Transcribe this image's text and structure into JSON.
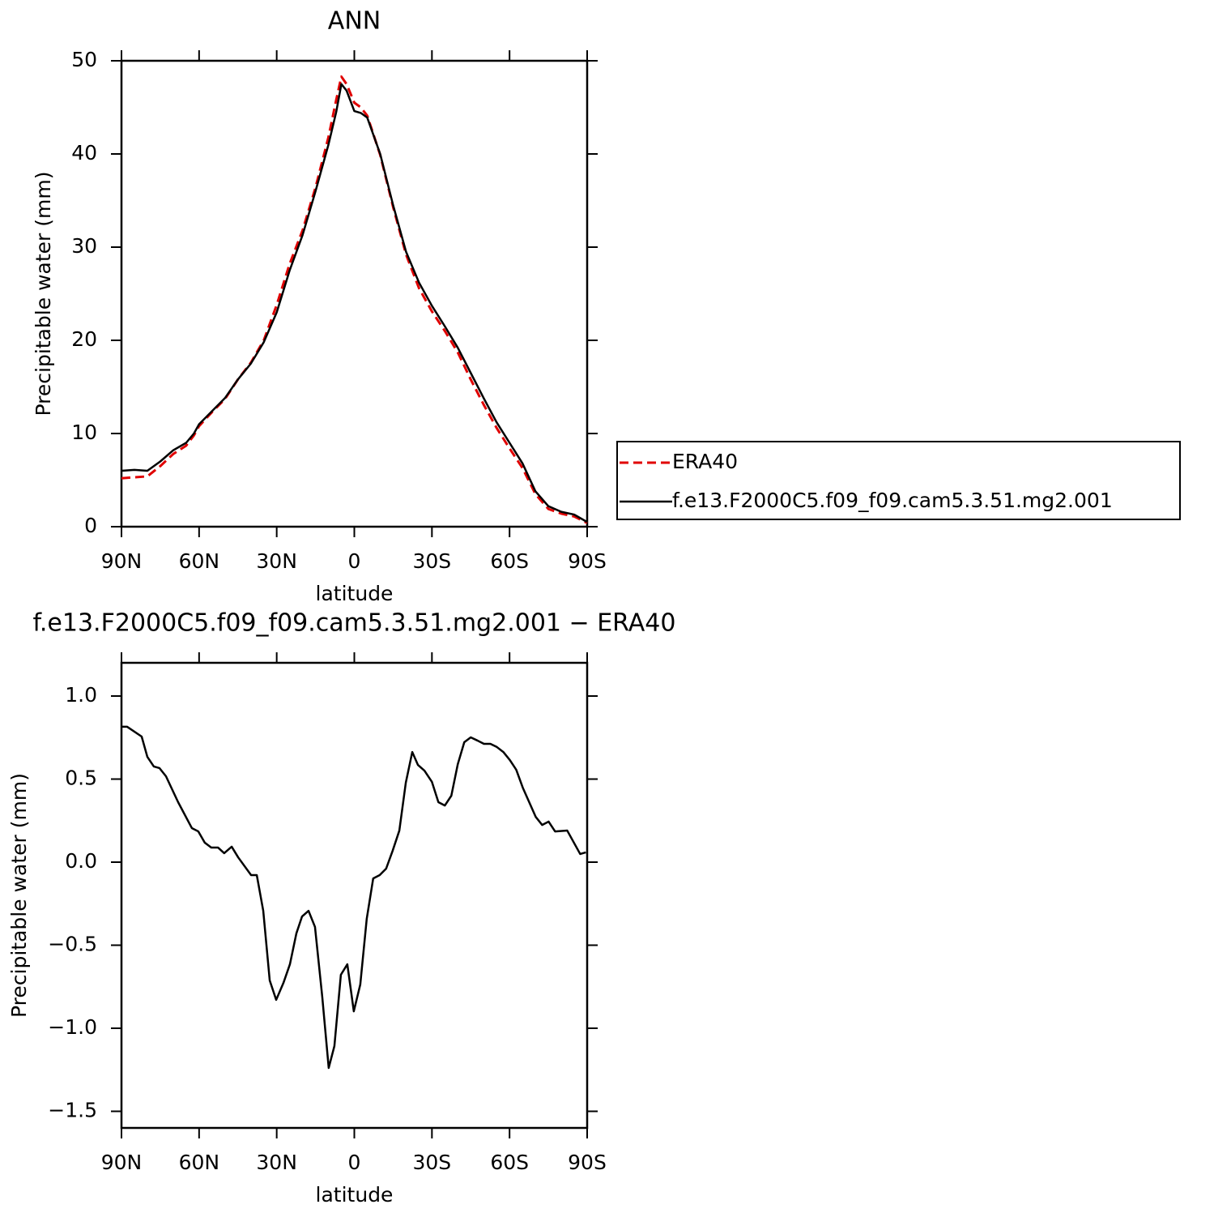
{
  "chart_data": [
    {
      "type": "line",
      "title": "ANN",
      "x_label": "latitude",
      "y_label": "Precipitable water (mm)",
      "x": [
        90,
        85,
        80,
        75,
        70,
        65,
        62,
        60,
        55,
        50,
        45,
        40,
        35,
        30,
        25,
        20,
        15,
        10,
        7,
        5,
        3,
        0,
        -2.5,
        -5,
        -10,
        -15,
        -20,
        -25,
        -30,
        -35,
        -40,
        -45,
        -50,
        -55,
        -60,
        -65,
        -70,
        -75,
        -80,
        -85,
        -90
      ],
      "series": [
        {
          "name": "ERA40",
          "color": "#e00000",
          "line_style": "dashed",
          "values": [
            5.2,
            5.3,
            5.4,
            6.5,
            7.8,
            8.7,
            9.8,
            10.8,
            12.3,
            13.7,
            15.8,
            17.6,
            20.0,
            23.8,
            28.2,
            31.8,
            36.4,
            41.8,
            45.8,
            48.3,
            47.5,
            45.5,
            45.0,
            44.1,
            39.9,
            34.3,
            29.2,
            25.6,
            23.1,
            21.0,
            18.7,
            15.8,
            13.1,
            10.6,
            8.4,
            6.3,
            3.5,
            1.9,
            1.4,
            1.1,
            0.4
          ]
        },
        {
          "name": "f.e13.F2000C5.f09_f09.cam5.3.51.mg2.001",
          "color": "#000000",
          "line_style": "solid",
          "values": [
            6.0,
            6.1,
            6.0,
            7.0,
            8.2,
            9.0,
            10.0,
            11.0,
            12.4,
            13.8,
            15.8,
            17.5,
            19.8,
            23.0,
            27.5,
            31.3,
            36.0,
            41.0,
            44.5,
            47.5,
            46.8,
            44.6,
            44.4,
            43.9,
            40.0,
            34.5,
            29.5,
            26.2,
            23.7,
            21.5,
            19.2,
            16.5,
            13.8,
            11.2,
            9.0,
            6.8,
            3.8,
            2.2,
            1.6,
            1.3,
            0.5
          ]
        }
      ],
      "xlim": [
        90,
        -90
      ],
      "xticks": [
        {
          "value": 90,
          "label": "90N"
        },
        {
          "value": 60,
          "label": "60N"
        },
        {
          "value": 30,
          "label": "30N"
        },
        0,
        {
          "value": -30,
          "label": "30S"
        },
        {
          "value": -60,
          "label": "60S"
        },
        {
          "value": -90,
          "label": "90S"
        }
      ],
      "ylim": [
        0,
        50
      ],
      "yticks": [
        0,
        10,
        20,
        30,
        40,
        50
      ],
      "legend": "right"
    },
    {
      "type": "line",
      "title": "f.e13.F2000C5.f09_f09.cam5.3.51.mg2.001 − ERA40",
      "x_label": "latitude",
      "y_label": "Precipitable water (mm)",
      "x": [
        90,
        87.8,
        82.2,
        80,
        77.5,
        75.3,
        72.8,
        68.1,
        62.8,
        60.3,
        57.8,
        55.3,
        52.7,
        50.3,
        47.4,
        44.9,
        39.9,
        37.7,
        35.2,
        32.7,
        30.2,
        27.4,
        24.9,
        22.4,
        20.2,
        17.7,
        15.2,
        12.4,
        9.9,
        7.7,
        5.2,
        2.7,
        0.2,
        -2.3,
        -4.8,
        -7.3,
        -9.8,
        -12.3,
        -14.8,
        -17.4,
        -19.9,
        -22.4,
        -24.6,
        -27.1,
        -30,
        -32.5,
        -35,
        -37.5,
        -40,
        -42.5,
        -45,
        -47.6,
        -50.1,
        -52.6,
        -55.1,
        -57.6,
        -60.1,
        -62.6,
        -65.1,
        -67.6,
        -70.1,
        -72.6,
        -75.1,
        -77.6,
        -82.3,
        -87.3,
        -89.5
      ],
      "values": [
        0.815,
        0.815,
        0.756,
        0.634,
        0.576,
        0.566,
        0.517,
        0.361,
        0.205,
        0.185,
        0.117,
        0.088,
        0.088,
        0.054,
        0.093,
        0.029,
        -0.078,
        -0.078,
        -0.293,
        -0.712,
        -0.829,
        -0.727,
        -0.615,
        -0.429,
        -0.327,
        -0.293,
        -0.39,
        -0.81,
        -1.239,
        -1.107,
        -0.678,
        -0.615,
        -0.898,
        -0.737,
        -0.341,
        -0.098,
        -0.078,
        -0.039,
        0.068,
        0.19,
        0.478,
        0.663,
        0.585,
        0.551,
        0.483,
        0.361,
        0.341,
        0.4,
        0.59,
        0.722,
        0.751,
        0.732,
        0.712,
        0.712,
        0.693,
        0.663,
        0.615,
        0.556,
        0.449,
        0.361,
        0.273,
        0.224,
        0.244,
        0.185,
        0.19,
        0.049,
        0.059
      ],
      "color": "#000000",
      "xlim": [
        90,
        -90
      ],
      "xticks": [
        {
          "value": 90,
          "label": "90N"
        },
        {
          "value": 60,
          "label": "60N"
        },
        {
          "value": 30,
          "label": "30N"
        },
        0,
        {
          "value": -30,
          "label": "30S"
        },
        {
          "value": -60,
          "label": "60S"
        },
        {
          "value": -90,
          "label": "90S"
        }
      ],
      "ylim": [
        -1.6,
        1.2
      ],
      "yticks": [
        {
          "value": -1.5,
          "label": "−1.5"
        },
        {
          "value": -1,
          "label": "−1.0"
        },
        {
          "value": -0.5,
          "label": "−0.5"
        },
        {
          "value": 0,
          "label": "0.0"
        },
        0.5,
        {
          "value": 1,
          "label": "1.0"
        }
      ]
    }
  ]
}
